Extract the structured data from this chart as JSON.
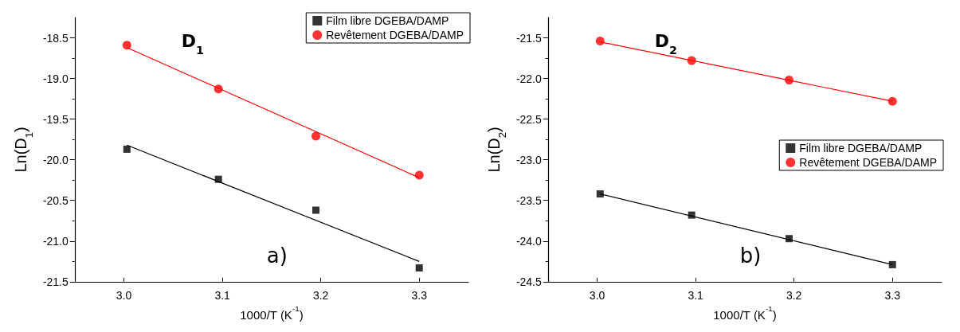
{
  "chart_data": [
    {
      "type": "scatter",
      "xlabel": "1000/T (K$^{-1}$)",
      "ylabel": "Ln(D$_{1}$)",
      "annotations": [
        "D$_{1}$",
        "a)"
      ],
      "xlim": [
        2.95,
        3.35
      ],
      "xticks": [
        {
          "value": 3,
          "label": "3.0"
        },
        3.1,
        3.2,
        3.3
      ],
      "ylim": [
        -21.5,
        -18.25
      ],
      "yticks": [
        -21.5,
        {
          "value": -21,
          "label": "-21.0"
        },
        -20.5,
        {
          "value": -20,
          "label": "-20.0"
        },
        -19.5,
        {
          "value": -19,
          "label": "-19.0"
        },
        -18.5
      ],
      "grid": false,
      "legend": "top right",
      "series": [
        {
          "name": "Film libre DGEBA/DAMP",
          "color": "#000000",
          "marker": "square",
          "x": [
            3.003,
            3.096,
            3.195,
            3.3
          ],
          "values": [
            -19.87,
            -20.24,
            -20.62,
            -21.33
          ]
        },
        {
          "name": "Revêtement DGEBA/DAMP",
          "color": "#ff0000",
          "marker": "circle",
          "x": [
            3.003,
            3.096,
            3.195,
            3.3
          ],
          "values": [
            -18.59,
            -19.13,
            -19.71,
            -20.19
          ]
        },
        {
          "type": "line",
          "color": "#000000",
          "marker": "none",
          "x": [
            3.003,
            3.3
          ],
          "values": [
            -19.82,
            -21.25
          ]
        },
        {
          "type": "line",
          "color": "#ff0000",
          "marker": "none",
          "x": [
            3.003,
            3.3
          ],
          "values": [
            -18.62,
            -20.22
          ]
        }
      ]
    },
    {
      "type": "scatter",
      "xlabel": "1000/T (K$^{-1}$)",
      "ylabel": "Ln(D$_{2}$)",
      "annotations": [
        "D$_{2}$",
        "b)"
      ],
      "xlim": [
        2.95,
        3.35
      ],
      "xticks": [
        {
          "value": 3,
          "label": "3.0"
        },
        3.1,
        3.2,
        3.3
      ],
      "ylim": [
        -24.5,
        -21.25
      ],
      "yticks": [
        -24.5,
        {
          "value": -24,
          "label": "-24.0"
        },
        -23.5,
        {
          "value": -23,
          "label": "-23.0"
        },
        -22.5,
        {
          "value": -22,
          "label": "-22.0"
        },
        -21.5
      ],
      "grid": false,
      "legend": "right",
      "series": [
        {
          "name": "Film libre DGEBA/DAMP",
          "color": "#000000",
          "marker": "square",
          "x": [
            3.003,
            3.096,
            3.195,
            3.3
          ],
          "values": [
            -23.42,
            -23.68,
            -23.97,
            -24.29
          ]
        },
        {
          "name": "Revêtement DGEBA/DAMP",
          "color": "#ff0000",
          "marker": "circle",
          "x": [
            3.003,
            3.096,
            3.195,
            3.3
          ],
          "values": [
            -21.54,
            -21.78,
            -22.02,
            -22.28
          ]
        },
        {
          "type": "line",
          "color": "#000000",
          "marker": "none",
          "x": [
            3.003,
            3.3
          ],
          "values": [
            -23.42,
            -24.29
          ]
        },
        {
          "type": "line",
          "color": "#ff0000",
          "marker": "none",
          "x": [
            3.003,
            3.3
          ],
          "values": [
            -21.55,
            -22.28
          ]
        }
      ]
    }
  ]
}
